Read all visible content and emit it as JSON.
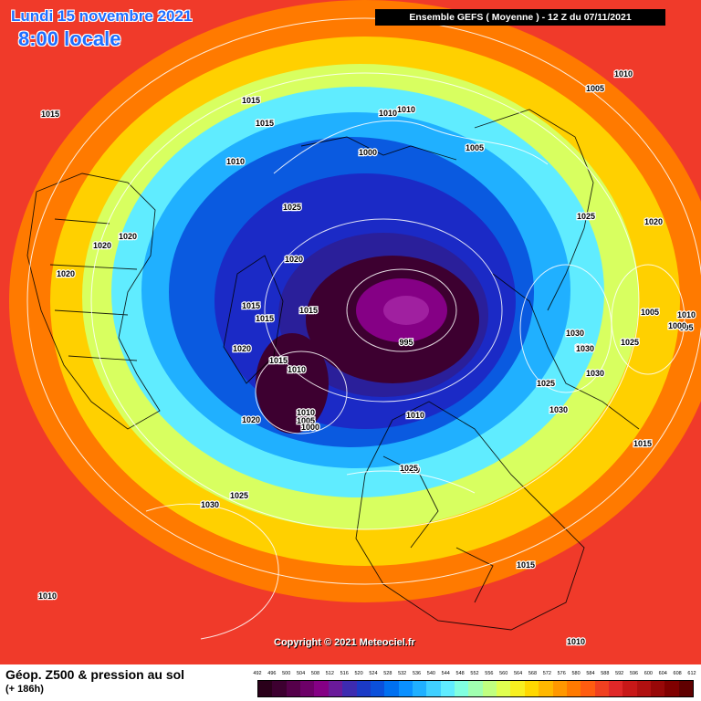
{
  "header": {
    "date_label": "Lundi 15 novembre 2021",
    "time_label": "8:00 locale",
    "run_label": "Ensemble GEFS  ( Moyenne )  -  12 Z du 07/11/2021"
  },
  "copyright": "Copyright © 2021 Meteociel.fr",
  "footer": {
    "parameter_label": "Géop. Z500 & pression au sol",
    "lead_label": "(+ 186h)"
  },
  "scale": {
    "values": [
      "492",
      "496",
      "500",
      "504",
      "508",
      "512",
      "516",
      "520",
      "524",
      "528",
      "532",
      "536",
      "540",
      "544",
      "548",
      "552",
      "556",
      "560",
      "564",
      "568",
      "572",
      "576",
      "580",
      "584",
      "588",
      "592",
      "596",
      "600",
      "604",
      "608",
      "612"
    ],
    "colors": [
      "#2a001a",
      "#3d0030",
      "#55004a",
      "#6d0068",
      "#850085",
      "#6a1a9a",
      "#3d2bb0",
      "#1b3ac6",
      "#0b50db",
      "#0070f0",
      "#0a90ff",
      "#20b0ff",
      "#40d0ff",
      "#60ecff",
      "#80ffe0",
      "#a0ffb0",
      "#c0ff80",
      "#e0ff50",
      "#f8f020",
      "#ffd800",
      "#ffb800",
      "#ff9800",
      "#ff7a00",
      "#ff5c10",
      "#f04020",
      "#e02828",
      "#c81818",
      "#b01010",
      "#980808",
      "#800000",
      "#600000"
    ]
  },
  "map_data": {
    "type": "polar-stereographic geopotential map",
    "isobar_labels": [
      "1015",
      "1015",
      "1015",
      "1010",
      "1010",
      "1010",
      "1005",
      "1000",
      "1005",
      "1025",
      "1020",
      "1020",
      "1020",
      "1020",
      "1015",
      "1015",
      "1015",
      "1020",
      "1015",
      "1010",
      "1020",
      "1010",
      "1005",
      "1000",
      "995",
      "1010",
      "1020",
      "1025",
      "1030",
      "1030",
      "1030",
      "1030",
      "1025",
      "1025",
      "1020",
      "1005",
      "995",
      "1000",
      "1010",
      "1025",
      "1030",
      "1015",
      "1015",
      "1010",
      "1010",
      "1030",
      "1025",
      "1010"
    ]
  }
}
